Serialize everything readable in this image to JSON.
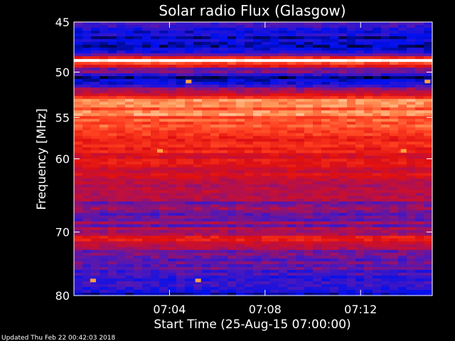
{
  "chart_data": {
    "type": "heatmap",
    "title": "Solar radio Flux (Glasgow)",
    "xlabel": "Start Time (25-Aug-15 07:00:00)",
    "ylabel": "Frequency [MHz]",
    "x_unit": "minutes after 07:00:00",
    "xlim": [
      0,
      15
    ],
    "ylim": [
      80,
      45
    ],
    "y_scale": "log",
    "x_ticks": [
      {
        "value": 4,
        "label": "07:04"
      },
      {
        "value": 8,
        "label": "07:08"
      },
      {
        "value": 12,
        "label": "07:12"
      }
    ],
    "y_ticks": [
      {
        "value": 45,
        "label": "45"
      },
      {
        "value": 50,
        "label": "50"
      },
      {
        "value": 55,
        "label": "55"
      },
      {
        "value": 60,
        "label": "60"
      },
      {
        "value": 70,
        "label": "70"
      },
      {
        "value": 80,
        "label": "80"
      }
    ],
    "colormap": [
      "#000000",
      "#0010f0",
      "#5018b8",
      "#b01050",
      "#e01010",
      "#ff4020",
      "#ffa060",
      "#ffffff"
    ],
    "intensity_by_frequency": [
      {
        "mhz": 45.0,
        "level": 0.35
      },
      {
        "mhz": 46.0,
        "level": 0.18
      },
      {
        "mhz": 48.0,
        "level": 0.14
      },
      {
        "mhz": 48.8,
        "level": 1.0
      },
      {
        "mhz": 49.5,
        "level": 0.45
      },
      {
        "mhz": 50.5,
        "level": 0.12
      },
      {
        "mhz": 51.5,
        "level": 0.28
      },
      {
        "mhz": 52.5,
        "level": 0.5
      },
      {
        "mhz": 53.0,
        "level": 0.78
      },
      {
        "mhz": 54.5,
        "level": 0.8
      },
      {
        "mhz": 56.0,
        "level": 0.72
      },
      {
        "mhz": 58.0,
        "level": 0.66
      },
      {
        "mhz": 60.0,
        "level": 0.58
      },
      {
        "mhz": 62.0,
        "level": 0.52
      },
      {
        "mhz": 64.0,
        "level": 0.44
      },
      {
        "mhz": 66.0,
        "level": 0.38
      },
      {
        "mhz": 68.0,
        "level": 0.34
      },
      {
        "mhz": 70.0,
        "level": 0.4
      },
      {
        "mhz": 71.0,
        "level": 0.68
      },
      {
        "mhz": 72.0,
        "level": 0.42
      },
      {
        "mhz": 74.0,
        "level": 0.34
      },
      {
        "mhz": 76.0,
        "level": 0.3
      },
      {
        "mhz": 78.0,
        "level": 0.2
      },
      {
        "mhz": 80.0,
        "level": 0.16
      }
    ],
    "hot_spots": [
      {
        "minute": 3.6,
        "mhz": 59.0
      },
      {
        "minute": 13.8,
        "mhz": 59.0
      },
      {
        "minute": 4.8,
        "mhz": 51.0
      },
      {
        "minute": 14.8,
        "mhz": 51.0
      },
      {
        "minute": 0.8,
        "mhz": 77.5
      },
      {
        "minute": 5.2,
        "mhz": 77.5
      }
    ]
  },
  "footer": {
    "updated": "Updated Thu Feb 22 00:42:03 2018"
  }
}
